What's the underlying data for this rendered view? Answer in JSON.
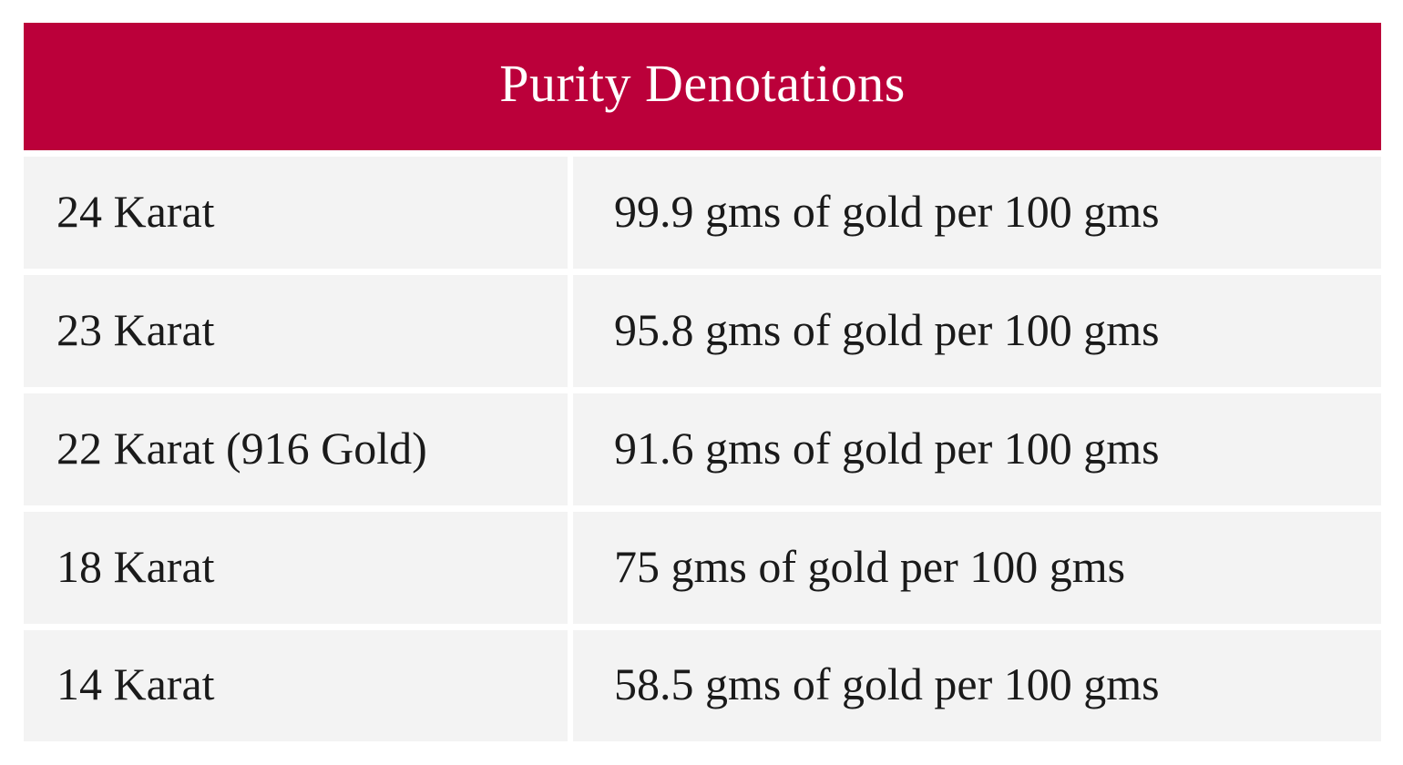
{
  "table": {
    "title": "Purity Denotations",
    "header_color": "#bb003a",
    "rows": [
      {
        "karat": "24 Karat",
        "purity": "99.9 gms of gold per 100 gms"
      },
      {
        "karat": "23 Karat",
        "purity": "95.8 gms of gold per 100 gms"
      },
      {
        "karat": "22 Karat (916 Gold)",
        "purity": "91.6 gms of gold per 100 gms"
      },
      {
        "karat": "18 Karat",
        "purity": "75 gms of gold per 100 gms"
      },
      {
        "karat": "14 Karat",
        "purity": "58.5 gms of gold per 100 gms"
      }
    ]
  }
}
